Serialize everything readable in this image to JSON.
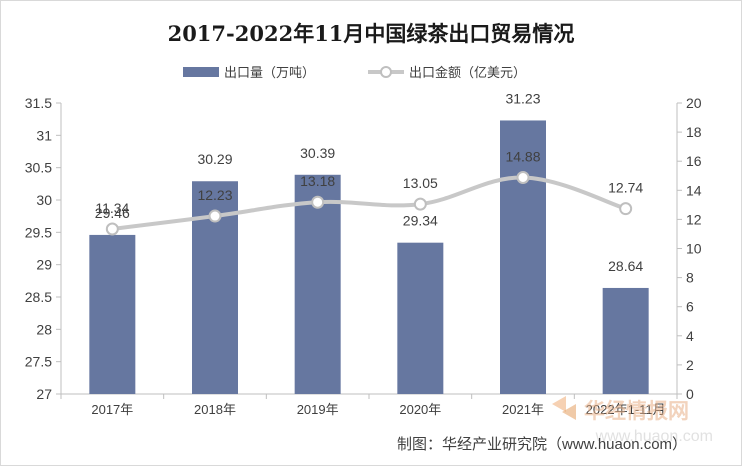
{
  "chart_data": {
    "type": "bar",
    "title": "2017-2022年11月中国绿茶出口贸易情况",
    "categories": [
      "2017年",
      "2018年",
      "2019年",
      "2020年",
      "2021年",
      "2022年1-11月"
    ],
    "series": [
      {
        "name": "出口量（万吨）",
        "type": "bar",
        "axis": "left",
        "color": "#6677a0",
        "values": [
          29.46,
          30.29,
          30.39,
          29.34,
          31.23,
          28.64
        ]
      },
      {
        "name": "出口金额（亿美元）",
        "type": "line",
        "axis": "right",
        "color": "#c8c8c8",
        "values": [
          11.34,
          12.23,
          13.18,
          13.05,
          14.88,
          12.74
        ]
      }
    ],
    "y_left": {
      "min": 27,
      "max": 31.5,
      "step": 0.5,
      "ticks": [
        "27",
        "27.5",
        "28",
        "28.5",
        "29",
        "29.5",
        "30",
        "30.5",
        "31",
        "31.5"
      ]
    },
    "y_right": {
      "min": 0,
      "max": 20,
      "step": 2,
      "ticks": [
        "0",
        "2",
        "4",
        "6",
        "8",
        "10",
        "12",
        "14",
        "16",
        "18",
        "20"
      ]
    },
    "grid": false,
    "legend_position": "top-center"
  },
  "source": "制图：华经产业研究院（www.huaon.com）",
  "watermark": {
    "brand": "华经情报网",
    "url": "www.huaon.com"
  }
}
